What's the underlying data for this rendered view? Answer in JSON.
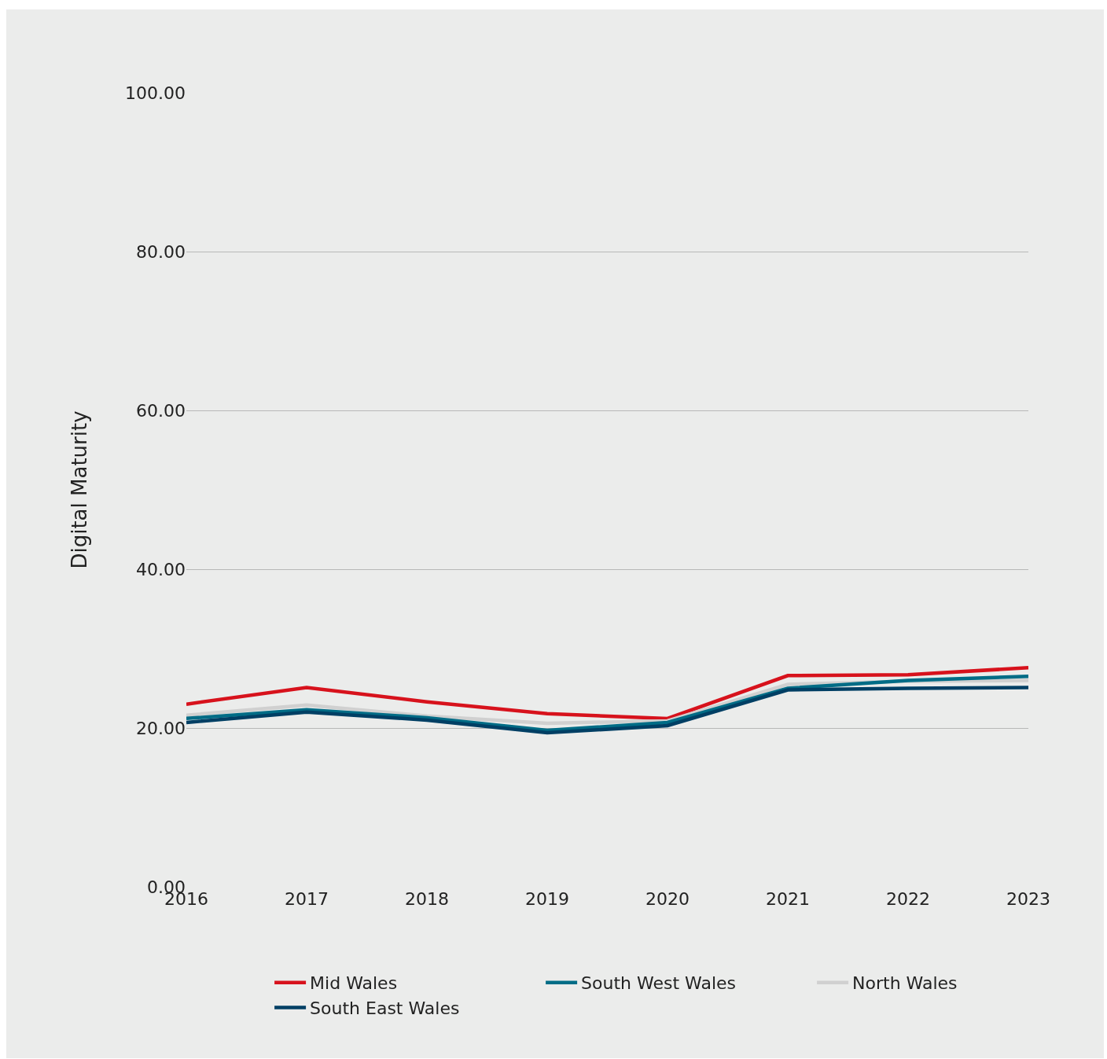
{
  "chart_data": {
    "type": "line",
    "ylabel": "Digital Maturity",
    "x": [
      2016,
      2017,
      2018,
      2019,
      2020,
      2021,
      2022,
      2023
    ],
    "xlim": [
      2016,
      2023
    ],
    "xticks": [
      2016,
      2017,
      2018,
      2019,
      2020,
      2021,
      2022,
      2023
    ],
    "ylim": [
      0,
      100
    ],
    "yticks": [
      {
        "value": 0,
        "label": "0.00"
      },
      {
        "value": 20,
        "label": "20.00"
      },
      {
        "value": 40,
        "label": "40.00"
      },
      {
        "value": 60,
        "label": "60.00"
      },
      {
        "value": 80,
        "label": "80.00"
      },
      {
        "value": 100,
        "label": "100.00"
      }
    ],
    "grid": "y",
    "legend": "bottom",
    "marker": "none",
    "line_style": "solid",
    "series": [
      {
        "name": "Mid Wales",
        "color": "#d7121c",
        "values": [
          23.0,
          25.1,
          23.3,
          21.8,
          21.2,
          26.6,
          26.7,
          27.6
        ]
      },
      {
        "name": "North Wales",
        "color": "#d0d0d0",
        "values": [
          21.6,
          22.9,
          21.5,
          20.6,
          20.9,
          25.5,
          25.9,
          26.0
        ]
      },
      {
        "name": "South West Wales",
        "color": "#006c86",
        "values": [
          21.2,
          22.3,
          21.3,
          19.7,
          20.7,
          25.0,
          26.0,
          26.5
        ]
      },
      {
        "name": "South East Wales",
        "color": "#003f64",
        "values": [
          20.7,
          22.0,
          21.0,
          19.4,
          20.3,
          24.8,
          25.0,
          25.1
        ]
      }
    ]
  }
}
